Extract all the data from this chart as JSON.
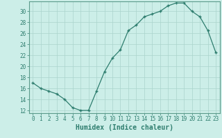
{
  "xlabel": "Humidex (Indice chaleur)",
  "x": [
    0,
    1,
    2,
    3,
    4,
    5,
    6,
    7,
    8,
    9,
    10,
    11,
    12,
    13,
    14,
    15,
    16,
    17,
    18,
    19,
    20,
    21,
    22,
    23
  ],
  "y": [
    17,
    16,
    15.5,
    15,
    14,
    12.5,
    12,
    12,
    15.5,
    19,
    21.5,
    23,
    26.5,
    27.5,
    29,
    29.5,
    30,
    31,
    31.5,
    31.5,
    30,
    29,
    26.5,
    22.5
  ],
  "line_color": "#2e7d6e",
  "marker": "+",
  "marker_size": 3.5,
  "marker_lw": 1.0,
  "bg_color": "#cceee8",
  "grid_color": "#aad4cc",
  "ylim": [
    11.5,
    31.8
  ],
  "xlim": [
    -0.5,
    23.5
  ],
  "yticks": [
    12,
    14,
    16,
    18,
    20,
    22,
    24,
    26,
    28,
    30
  ],
  "xticks": [
    0,
    1,
    2,
    3,
    4,
    5,
    6,
    7,
    8,
    9,
    10,
    11,
    12,
    13,
    14,
    15,
    16,
    17,
    18,
    19,
    20,
    21,
    22,
    23
  ],
  "tick_label_size": 5.5,
  "xlabel_size": 7.0,
  "line_width": 0.9
}
